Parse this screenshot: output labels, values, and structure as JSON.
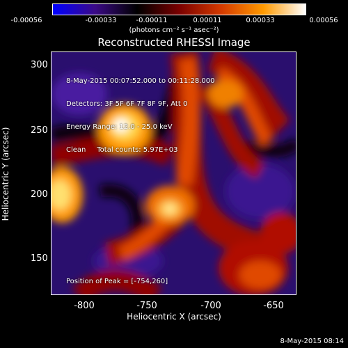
{
  "colorbar": {
    "ticks": [
      "-0.00056",
      "-0.00033",
      "-0.00011",
      "0.00011",
      "0.00033",
      "0.00056"
    ],
    "units": "(photons cm⁻² s⁻¹ asec⁻²)",
    "colors": [
      "#0000ff",
      "#3b0a86",
      "#000000",
      "#7a0000",
      "#d43a00",
      "#ff9a00",
      "#ffffff"
    ]
  },
  "image": {
    "title": "Reconstructed RHESSI Image",
    "info_lines": [
      "8-May-2015 00:07:52.000 to 00:11:28.000",
      "Detectors: 3F 5F 6F 7F 8F 9F, Att 0",
      "Energy Range: 12.0 - 25.0 keV",
      "Clean     Total counts: 5.97E+03"
    ],
    "peak_text": "Position of Peak = [-754,260]"
  },
  "axes": {
    "xlabel": "Heliocentric X (arcsec)",
    "ylabel": "Heliocentric Y (arcsec)",
    "xticks": [
      "-800",
      "-750",
      "-700",
      "-650"
    ],
    "yticks": [
      "300",
      "250",
      "200",
      "150"
    ]
  },
  "timestamp": "8-May-2015 08:14"
}
